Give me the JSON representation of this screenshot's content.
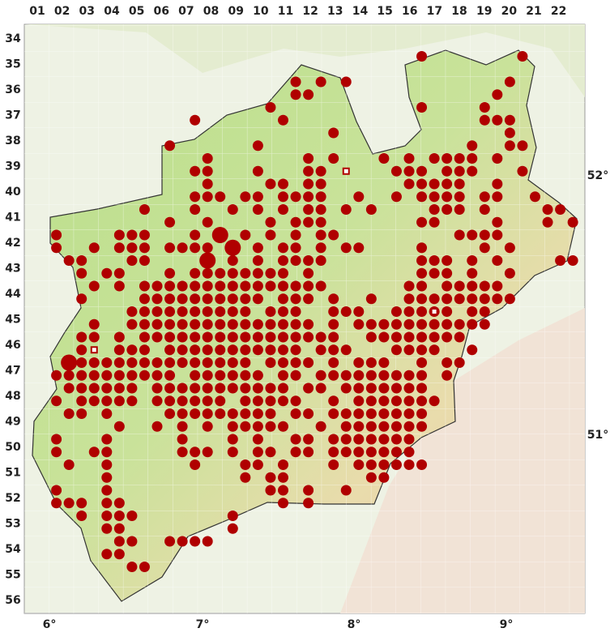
{
  "map": {
    "columns": [
      "01",
      "02",
      "03",
      "04",
      "05",
      "06",
      "07",
      "08",
      "09",
      "10",
      "11",
      "12",
      "13",
      "14",
      "15",
      "16",
      "17",
      "18",
      "19",
      "20",
      "21",
      "22"
    ],
    "rows": [
      "34",
      "35",
      "36",
      "37",
      "38",
      "39",
      "40",
      "41",
      "42",
      "43",
      "44",
      "45",
      "46",
      "47",
      "48",
      "49",
      "50",
      "51",
      "52",
      "53",
      "54",
      "55",
      "56"
    ],
    "longitudes": [
      "6°",
      "7°",
      "8°",
      "9°"
    ],
    "latitudes": [
      "52°",
      "51°"
    ]
  }
}
